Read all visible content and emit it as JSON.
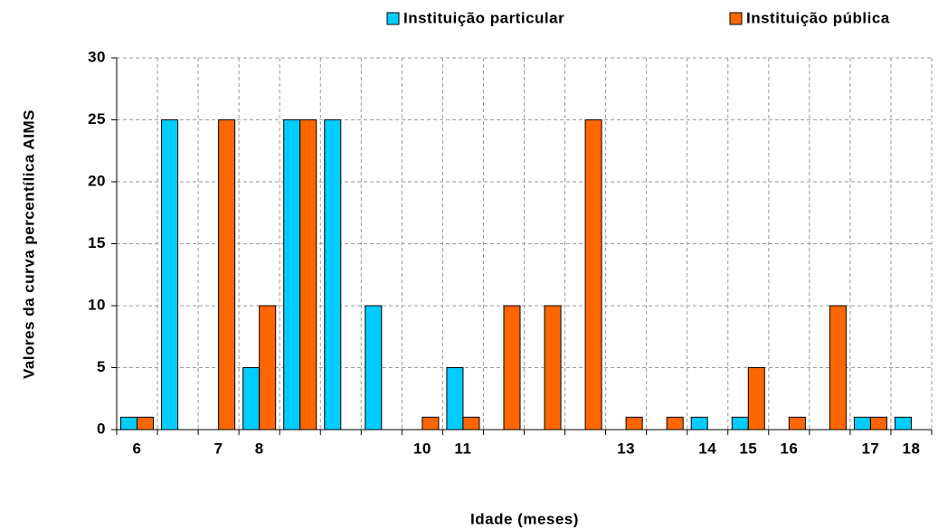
{
  "chart_data": {
    "type": "bar",
    "xlabel": "Idade (meses)",
    "ylabel": "Valores da curva percentílica AIMS",
    "categories": [
      "6",
      null,
      "7",
      "8",
      null,
      null,
      null,
      "10",
      "11",
      null,
      null,
      null,
      "13",
      null,
      "14",
      "15",
      "16",
      null,
      "17",
      "18"
    ],
    "series": [
      {
        "name": "Instituição particular",
        "color": "#00ccff",
        "values": [
          1,
          25,
          null,
          5,
          25,
          25,
          10,
          null,
          5,
          null,
          null,
          null,
          null,
          null,
          1,
          1,
          null,
          null,
          1,
          1
        ]
      },
      {
        "name": "Instituição pública",
        "color": "#ff6600",
        "values": [
          1,
          null,
          25,
          10,
          25,
          null,
          null,
          1,
          1,
          10,
          10,
          25,
          1,
          1,
          null,
          5,
          1,
          10,
          1,
          null
        ]
      }
    ],
    "ylim": [
      0,
      30
    ],
    "yticks": [
      0,
      5,
      10,
      15,
      20,
      25,
      30
    ],
    "grid": true,
    "legend": "top-right"
  }
}
